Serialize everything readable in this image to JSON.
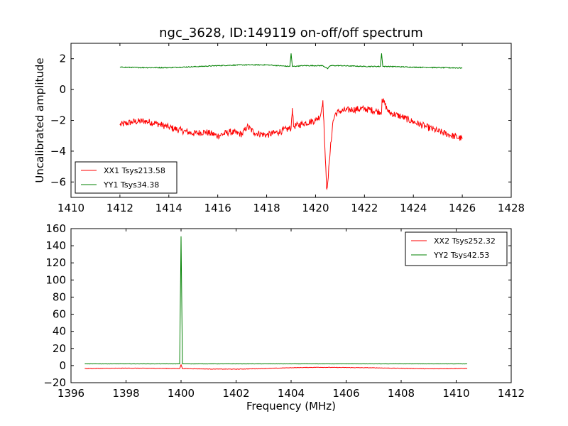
{
  "title": "ngc_3628, ID:149119 on-off/off spectrum",
  "chart_data": [
    {
      "type": "line",
      "xlim": [
        1410,
        1428
      ],
      "ylim": [
        -7,
        3
      ],
      "xticks": [
        1410,
        1412,
        1414,
        1416,
        1418,
        1420,
        1422,
        1424,
        1426,
        1428
      ],
      "yticks": [
        2,
        0,
        -2,
        -4,
        -6
      ],
      "xlabel": "",
      "ylabel": "Uncalibrated amplitude",
      "legend_position": "lower-left",
      "series": [
        {
          "name": "XX1 Tsys213.58",
          "color": "#ff0000",
          "x": [
            1412,
            1412.5,
            1413,
            1413.5,
            1414,
            1414.5,
            1415,
            1415.5,
            1416,
            1416.5,
            1417,
            1417.2,
            1417.5,
            1418,
            1418.5,
            1419,
            1419.05,
            1419.1,
            1419.5,
            1420,
            1420.2,
            1420.3,
            1420.4,
            1420.45,
            1420.5,
            1420.6,
            1420.7,
            1420.8,
            1421,
            1421.5,
            1422,
            1422.5,
            1422.7,
            1422.72,
            1423,
            1423.5,
            1424,
            1424.5,
            1425,
            1425.5,
            1426
          ],
          "y": [
            -2.3,
            -2.1,
            -2.05,
            -2.2,
            -2.45,
            -2.65,
            -2.85,
            -2.75,
            -3.0,
            -2.75,
            -2.9,
            -2.4,
            -2.8,
            -2.95,
            -2.75,
            -2.5,
            -1.2,
            -2.4,
            -2.2,
            -2.0,
            -1.7,
            -0.7,
            -4.5,
            -6.4,
            -6.0,
            -4.0,
            -2.2,
            -1.6,
            -1.4,
            -1.3,
            -1.25,
            -1.4,
            -1.45,
            -0.6,
            -1.5,
            -1.75,
            -2.1,
            -2.4,
            -2.7,
            -2.95,
            -3.2
          ]
        },
        {
          "name": "YY1 Tsys34.38",
          "color": "#008000",
          "x": [
            1412,
            1413,
            1414,
            1415,
            1416,
            1417,
            1418,
            1418.95,
            1419,
            1419.05,
            1419.5,
            1420,
            1420.3,
            1420.5,
            1420.6,
            1420.8,
            1421,
            1422,
            1422.65,
            1422.7,
            1422.75,
            1423,
            1424,
            1425,
            1426
          ],
          "y": [
            1.45,
            1.42,
            1.42,
            1.48,
            1.55,
            1.6,
            1.6,
            1.5,
            2.35,
            1.5,
            1.55,
            1.55,
            1.55,
            1.35,
            1.55,
            1.55,
            1.55,
            1.5,
            1.5,
            2.35,
            1.5,
            1.5,
            1.45,
            1.42,
            1.4
          ]
        }
      ]
    },
    {
      "type": "line",
      "xlim": [
        1396,
        1412
      ],
      "ylim": [
        -20,
        160
      ],
      "xticks": [
        1396,
        1398,
        1400,
        1402,
        1404,
        1406,
        1408,
        1410,
        1412
      ],
      "yticks": [
        160,
        140,
        120,
        100,
        80,
        60,
        40,
        20,
        0,
        -20
      ],
      "xlabel": "Frequency (MHz)",
      "ylabel": "",
      "legend_position": "upper-right",
      "series": [
        {
          "name": "XX2 Tsys252.32",
          "color": "#ff0000",
          "x": [
            1396.5,
            1397,
            1398,
            1399,
            1399.95,
            1400,
            1400.05,
            1401,
            1402,
            1403,
            1404,
            1405,
            1406,
            1407,
            1408,
            1409,
            1410,
            1410.4
          ],
          "y": [
            -3.5,
            -3.3,
            -3.0,
            -3.2,
            -3.5,
            1.0,
            -3.5,
            -4.0,
            -4.2,
            -3.5,
            -2.5,
            -2.0,
            -2.3,
            -2.6,
            -3.2,
            -3.8,
            -3.5,
            -3.3
          ]
        },
        {
          "name": "YY2 Tsys42.53",
          "color": "#008000",
          "x": [
            1396.5,
            1398,
            1399.95,
            1400,
            1400.05,
            1402,
            1404,
            1406,
            1408,
            1410,
            1410.4
          ],
          "y": [
            2.0,
            2.0,
            2.0,
            151,
            2.0,
            2.0,
            2.0,
            2.0,
            2.0,
            2.0,
            2.0
          ]
        }
      ]
    }
  ]
}
